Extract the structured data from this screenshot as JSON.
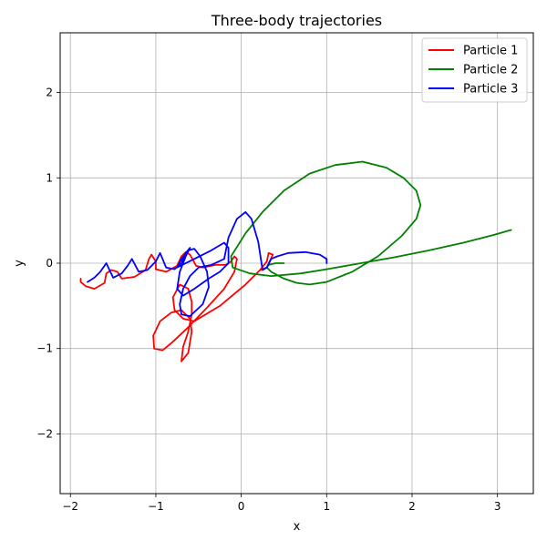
{
  "chart_data": {
    "type": "line",
    "title": "Three-body trajectories",
    "xlabel": "x",
    "ylabel": "y",
    "xlim": [
      -2.12,
      3.42
    ],
    "ylim": [
      -2.7,
      2.7
    ],
    "x_ticks": [
      {
        "value": -2,
        "label": "−2"
      },
      {
        "value": -1,
        "label": "−1"
      },
      {
        "value": 0,
        "label": "0"
      },
      {
        "value": 1,
        "label": "1"
      },
      {
        "value": 2,
        "label": "2"
      },
      {
        "value": 3,
        "label": "3"
      }
    ],
    "y_ticks": [
      {
        "value": -2,
        "label": "−2"
      },
      {
        "value": -1,
        "label": "−1"
      },
      {
        "value": 0,
        "label": "0"
      },
      {
        "value": 1,
        "label": "1"
      },
      {
        "value": 2,
        "label": "2"
      }
    ],
    "grid": true,
    "legend_position": "top-right",
    "series": [
      {
        "name": "Particle 1",
        "color": "#ff0000",
        "points": [
          [
            0.22,
            -0.08
          ],
          [
            0.3,
            -0.05
          ],
          [
            0.37,
            0.1
          ],
          [
            0.32,
            0.12
          ],
          [
            0.3,
            0.02
          ],
          [
            0.22,
            -0.08
          ],
          [
            0.05,
            -0.25
          ],
          [
            -0.25,
            -0.5
          ],
          [
            -0.55,
            -0.68
          ],
          [
            -0.68,
            -0.65
          ],
          [
            -0.78,
            -0.55
          ],
          [
            -0.8,
            -0.4
          ],
          [
            -0.72,
            -0.25
          ],
          [
            -0.62,
            -0.3
          ],
          [
            -0.58,
            -0.45
          ],
          [
            -0.58,
            -0.6
          ],
          [
            -0.62,
            -0.8
          ],
          [
            -0.68,
            -0.98
          ],
          [
            -0.7,
            -1.15
          ],
          [
            -0.62,
            -1.05
          ],
          [
            -0.58,
            -0.8
          ],
          [
            -0.6,
            -0.65
          ],
          [
            -0.7,
            -0.55
          ],
          [
            -0.82,
            -0.58
          ],
          [
            -0.95,
            -0.68
          ],
          [
            -1.03,
            -0.85
          ],
          [
            -1.02,
            -1.0
          ],
          [
            -0.92,
            -1.02
          ],
          [
            -0.8,
            -0.92
          ],
          [
            -0.62,
            -0.75
          ],
          [
            -0.4,
            -0.52
          ],
          [
            -0.2,
            -0.3
          ],
          [
            -0.08,
            -0.1
          ],
          [
            -0.05,
            0.05
          ],
          [
            -0.08,
            0.08
          ],
          [
            -0.12,
            0.02
          ],
          [
            -0.18,
            -0.02
          ],
          [
            -0.3,
            -0.02
          ],
          [
            -0.45,
            -0.05
          ],
          [
            -0.53,
            -0.03
          ],
          [
            -0.56,
            0.03
          ],
          [
            -0.6,
            0.1
          ],
          [
            -0.65,
            0.13
          ],
          [
            -0.7,
            0.08
          ],
          [
            -0.75,
            -0.03
          ],
          [
            -0.88,
            -0.1
          ],
          [
            -1.0,
            -0.07
          ],
          [
            -1.0,
            0.02
          ],
          [
            -1.05,
            0.1
          ],
          [
            -1.08,
            0.05
          ],
          [
            -1.12,
            -0.08
          ],
          [
            -1.25,
            -0.16
          ],
          [
            -1.4,
            -0.18
          ],
          [
            -1.45,
            -0.1
          ],
          [
            -1.52,
            -0.08
          ],
          [
            -1.58,
            -0.12
          ],
          [
            -1.6,
            -0.23
          ],
          [
            -1.72,
            -0.3
          ],
          [
            -1.82,
            -0.27
          ],
          [
            -1.88,
            -0.22
          ],
          [
            -1.88,
            -0.18
          ]
        ]
      },
      {
        "name": "Particle 2",
        "color": "#008000",
        "points": [
          [
            0.5,
            0.0
          ],
          [
            0.4,
            0.0
          ],
          [
            0.32,
            -0.02
          ],
          [
            0.3,
            -0.05
          ],
          [
            0.35,
            -0.1
          ],
          [
            0.5,
            -0.18
          ],
          [
            0.65,
            -0.23
          ],
          [
            0.8,
            -0.25
          ],
          [
            1.0,
            -0.22
          ],
          [
            1.3,
            -0.1
          ],
          [
            1.6,
            0.08
          ],
          [
            1.88,
            0.32
          ],
          [
            2.05,
            0.52
          ],
          [
            2.1,
            0.68
          ],
          [
            2.05,
            0.85
          ],
          [
            1.9,
            1.0
          ],
          [
            1.7,
            1.12
          ],
          [
            1.42,
            1.19
          ],
          [
            1.1,
            1.15
          ],
          [
            0.8,
            1.05
          ],
          [
            0.5,
            0.85
          ],
          [
            0.25,
            0.6
          ],
          [
            0.05,
            0.35
          ],
          [
            -0.12,
            0.08
          ],
          [
            -0.1,
            -0.05
          ],
          [
            0.1,
            -0.12
          ],
          [
            0.35,
            -0.15
          ],
          [
            0.7,
            -0.12
          ],
          [
            1.0,
            -0.07
          ],
          [
            1.4,
            0.0
          ],
          [
            1.8,
            0.07
          ],
          [
            2.2,
            0.15
          ],
          [
            2.6,
            0.24
          ],
          [
            2.95,
            0.33
          ],
          [
            3.16,
            0.39
          ]
        ]
      },
      {
        "name": "Particle 3",
        "color": "#0000ff",
        "points": [
          [
            1.0,
            0.0
          ],
          [
            1.0,
            0.05
          ],
          [
            0.92,
            0.1
          ],
          [
            0.75,
            0.13
          ],
          [
            0.55,
            0.12
          ],
          [
            0.42,
            0.08
          ],
          [
            0.35,
            0.05
          ],
          [
            0.3,
            -0.05
          ],
          [
            0.25,
            -0.08
          ],
          [
            0.2,
            0.25
          ],
          [
            0.12,
            0.52
          ],
          [
            0.05,
            0.6
          ],
          [
            -0.05,
            0.52
          ],
          [
            -0.15,
            0.3
          ],
          [
            -0.2,
            0.05
          ],
          [
            -0.35,
            -0.02
          ],
          [
            -0.5,
            -0.05
          ],
          [
            -0.6,
            -0.15
          ],
          [
            -0.68,
            -0.3
          ],
          [
            -0.72,
            -0.48
          ],
          [
            -0.7,
            -0.6
          ],
          [
            -0.6,
            -0.62
          ],
          [
            -0.45,
            -0.48
          ],
          [
            -0.38,
            -0.28
          ],
          [
            -0.4,
            -0.1
          ],
          [
            -0.48,
            0.08
          ],
          [
            -0.55,
            0.17
          ],
          [
            -0.62,
            0.15
          ],
          [
            -0.7,
            0.05
          ],
          [
            -0.75,
            -0.05
          ],
          [
            -0.55,
            0.05
          ],
          [
            -0.35,
            0.15
          ],
          [
            -0.2,
            0.24
          ],
          [
            -0.15,
            0.18
          ],
          [
            -0.15,
            0.0
          ],
          [
            -0.25,
            -0.1
          ],
          [
            -0.38,
            -0.18
          ],
          [
            -0.55,
            -0.3
          ],
          [
            -0.68,
            -0.38
          ],
          [
            -0.75,
            -0.3
          ],
          [
            -0.72,
            -0.1
          ],
          [
            -0.65,
            0.08
          ],
          [
            -0.6,
            0.18
          ],
          [
            -0.65,
            0.12
          ],
          [
            -0.7,
            0.0
          ],
          [
            -0.78,
            -0.07
          ],
          [
            -0.88,
            -0.05
          ],
          [
            -0.95,
            0.12
          ],
          [
            -1.0,
            0.02
          ],
          [
            -1.1,
            -0.08
          ],
          [
            -1.2,
            -0.1
          ],
          [
            -1.28,
            0.05
          ],
          [
            -1.33,
            -0.03
          ],
          [
            -1.4,
            -0.12
          ],
          [
            -1.5,
            -0.17
          ],
          [
            -1.58,
            0.0
          ],
          [
            -1.65,
            -0.1
          ],
          [
            -1.72,
            -0.17
          ],
          [
            -1.8,
            -0.22
          ]
        ]
      }
    ]
  }
}
